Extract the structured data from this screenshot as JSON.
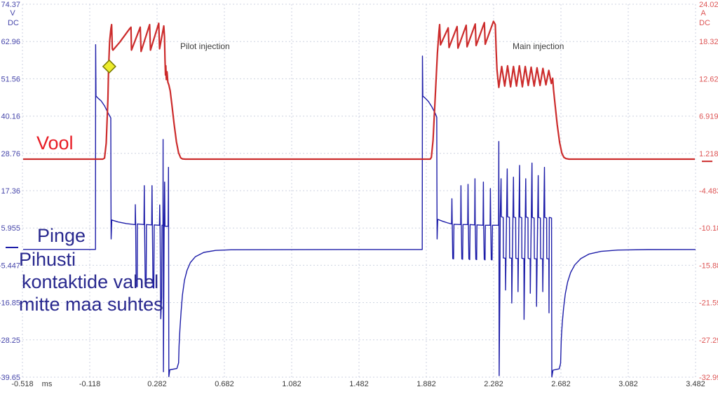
{
  "annotations": {
    "current_label": "Vool",
    "voltage_label": "Pinge",
    "voltage_note_line1": "Pihusti",
    "voltage_note_line2": "kontaktide vahel",
    "voltage_note_line3": "mitte maa suhtes",
    "pilot_injection": "Pilot injection",
    "main_injection": "Main injection"
  },
  "colors": {
    "background": "#ffffff",
    "grid": "#cdd2e0",
    "voltage_trace": "#1c1ca8",
    "current_trace": "#cc2b2b",
    "left_axis_text": "#4646aa",
    "right_axis_text": "#dd5555",
    "x_axis_text": "#3a3a3a",
    "annotation_red": "#e81c24",
    "annotation_blue": "#28288e",
    "injection_text": "#3c3c3c",
    "marker_fill": "#ecec2c",
    "marker_stroke": "#7a7a00"
  },
  "chart_data": {
    "type": "line",
    "title": "",
    "grid": true,
    "legend": "none",
    "x_axis": {
      "label": "ms",
      "range": [
        -0.518,
        3.482
      ],
      "ticks": [
        "-0.518",
        "-0.118",
        "0.282",
        "0.682",
        "1.082",
        "1.482",
        "1.882",
        "2.282",
        "2.682",
        "3.082",
        "3.482"
      ]
    },
    "left_axis": {
      "unit_line1": "V",
      "unit_line2": "DC",
      "range": [
        74.37,
        -39.65
      ],
      "ticks": [
        "74.37",
        "62.96",
        "51.56",
        "40.16",
        "28.76",
        "17.36",
        "5.955",
        "-5.447",
        "-16.85",
        "-28.25",
        "-39.65"
      ]
    },
    "right_axis": {
      "unit_line1": "A",
      "unit_line2": "DC",
      "range": [
        24.02,
        -32.99
      ],
      "ticks": [
        "24.02",
        "18.32",
        "12.62",
        "6.919",
        "1.218",
        "-4.483",
        "-10.18",
        "-15.88",
        "-21.59",
        "-27.29",
        "-32.99"
      ]
    },
    "zero_markers": {
      "voltage_v": 0,
      "current_a": 0
    },
    "trigger_marker": {
      "x_ms": -0.002,
      "value": 14.5,
      "axis": "right",
      "shape": "diamond"
    },
    "series": [
      {
        "name": "voltage",
        "label": "Pinge",
        "axis": "left",
        "color": "#1c1ca8",
        "stroke_width": 1.4,
        "points": [
          [
            -0.514,
            -0.6
          ],
          [
            -0.084,
            -0.6
          ],
          [
            -0.083,
            62.0
          ],
          [
            -0.081,
            46.3
          ],
          [
            -0.068,
            45.6
          ],
          [
            -0.05,
            44.8
          ],
          [
            -0.03,
            43.3
          ],
          [
            -0.01,
            41.2
          ],
          [
            0.007,
            39.6
          ],
          [
            0.008,
            20.0
          ],
          [
            0.009,
            2.6
          ],
          [
            0.011,
            5.5
          ],
          [
            0.013,
            8.4
          ],
          [
            0.05,
            7.8
          ],
          [
            0.1,
            7.3
          ],
          [
            0.148,
            7.0
          ],
          [
            0.152,
            7.0
          ],
          [
            0.153,
            13.1
          ],
          [
            0.155,
            7.0
          ],
          [
            0.158,
            -11.8
          ],
          [
            0.164,
            -12.0
          ],
          [
            0.165,
            7.2
          ],
          [
            0.204,
            7.0
          ],
          [
            0.206,
            18.9
          ],
          [
            0.208,
            7.0
          ],
          [
            0.212,
            -11.9
          ],
          [
            0.217,
            -12.1
          ],
          [
            0.219,
            7.0
          ],
          [
            0.25,
            6.9
          ],
          [
            0.252,
            18.9
          ],
          [
            0.254,
            6.9
          ],
          [
            0.258,
            -12.2
          ],
          [
            0.263,
            -12.4
          ],
          [
            0.265,
            6.9
          ],
          [
            0.296,
            6.8
          ],
          [
            0.298,
            13.0
          ],
          [
            0.3,
            6.8
          ],
          [
            0.304,
            -21.8
          ],
          [
            0.309,
            -15.2
          ],
          [
            0.311,
            6.8
          ],
          [
            0.317,
            6.8
          ],
          [
            0.318,
            33.0
          ],
          [
            0.32,
            -38.0
          ],
          [
            0.324,
            6.0
          ],
          [
            0.327,
            20.0
          ],
          [
            0.329,
            6.5
          ],
          [
            0.348,
            6.5
          ],
          [
            0.35,
            24.5
          ],
          [
            0.352,
            -39.5
          ],
          [
            0.358,
            -37.4
          ],
          [
            0.4,
            -37.0
          ],
          [
            0.41,
            -35.3
          ],
          [
            0.413,
            -30.0
          ],
          [
            0.418,
            -25.0
          ],
          [
            0.425,
            -19.5
          ],
          [
            0.433,
            -14.5
          ],
          [
            0.445,
            -10.0
          ],
          [
            0.46,
            -7.0
          ],
          [
            0.48,
            -4.6
          ],
          [
            0.51,
            -2.8
          ],
          [
            0.56,
            -1.5
          ],
          [
            0.63,
            -0.9
          ],
          [
            0.72,
            -0.7
          ],
          [
            1.4,
            -0.62
          ],
          [
            1.858,
            -0.62
          ],
          [
            1.859,
            58.5
          ],
          [
            1.861,
            46.3
          ],
          [
            1.875,
            45.7
          ],
          [
            1.895,
            44.6
          ],
          [
            1.915,
            43.0
          ],
          [
            1.935,
            41.0
          ],
          [
            1.944,
            39.8
          ],
          [
            1.945,
            20.0
          ],
          [
            1.946,
            2.6
          ],
          [
            1.948,
            5.5
          ],
          [
            1.95,
            8.6
          ],
          [
            1.98,
            8.0
          ],
          [
            2.01,
            7.5
          ],
          [
            2.032,
            7.2
          ],
          [
            2.034,
            14.9
          ],
          [
            2.036,
            7.1
          ],
          [
            2.039,
            -3.4
          ],
          [
            2.044,
            -3.5
          ],
          [
            2.046,
            7.1
          ],
          [
            2.086,
            7.0
          ],
          [
            2.088,
            18.9
          ],
          [
            2.09,
            7.0
          ],
          [
            2.093,
            -3.5
          ],
          [
            2.098,
            -3.6
          ],
          [
            2.1,
            7.0
          ],
          [
            2.128,
            7.0
          ],
          [
            2.13,
            19.3
          ],
          [
            2.132,
            7.0
          ],
          [
            2.135,
            -3.5
          ],
          [
            2.14,
            -3.7
          ],
          [
            2.142,
            7.0
          ],
          [
            2.169,
            6.9
          ],
          [
            2.171,
            21.0
          ],
          [
            2.173,
            6.9
          ],
          [
            2.176,
            -3.6
          ],
          [
            2.181,
            -3.7
          ],
          [
            2.183,
            6.9
          ],
          [
            2.219,
            6.8
          ],
          [
            2.221,
            20.0
          ],
          [
            2.223,
            6.8
          ],
          [
            2.226,
            -3.6
          ],
          [
            2.231,
            -3.8
          ],
          [
            2.233,
            6.8
          ],
          [
            2.261,
            6.8
          ],
          [
            2.263,
            18.0
          ],
          [
            2.265,
            6.8
          ],
          [
            2.268,
            -3.7
          ],
          [
            2.273,
            -3.8
          ],
          [
            2.275,
            6.8
          ],
          [
            2.311,
            6.8
          ],
          [
            2.313,
            32.4
          ],
          [
            2.315,
            -39.2
          ],
          [
            2.319,
            -12.0
          ],
          [
            2.321,
            9.4
          ],
          [
            2.326,
            21.0
          ],
          [
            2.328,
            9.4
          ],
          [
            2.339,
            9.2
          ],
          [
            2.34,
            -3.2
          ],
          [
            2.352,
            -3.3
          ],
          [
            2.353,
            -13.0
          ],
          [
            2.363,
            24.0
          ],
          [
            2.365,
            9.4
          ],
          [
            2.376,
            9.2
          ],
          [
            2.377,
            -3.2
          ],
          [
            2.389,
            -3.3
          ],
          [
            2.39,
            -17.0
          ],
          [
            2.4,
            21.5
          ],
          [
            2.402,
            9.3
          ],
          [
            2.413,
            9.1
          ],
          [
            2.414,
            -3.3
          ],
          [
            2.426,
            -3.4
          ],
          [
            2.427,
            -13.5
          ],
          [
            2.436,
            25.1
          ],
          [
            2.438,
            9.3
          ],
          [
            2.449,
            9.1
          ],
          [
            2.45,
            -3.3
          ],
          [
            2.462,
            -3.4
          ],
          [
            2.463,
            -22.0
          ],
          [
            2.473,
            21.0
          ],
          [
            2.475,
            9.3
          ],
          [
            2.486,
            9.1
          ],
          [
            2.487,
            -3.3
          ],
          [
            2.499,
            -3.5
          ],
          [
            2.5,
            -14.0
          ],
          [
            2.51,
            25.8
          ],
          [
            2.512,
            9.2
          ],
          [
            2.523,
            9.0
          ],
          [
            2.524,
            -3.4
          ],
          [
            2.536,
            -3.5
          ],
          [
            2.537,
            -18.0
          ],
          [
            2.547,
            22.0
          ],
          [
            2.549,
            9.2
          ],
          [
            2.56,
            9.0
          ],
          [
            2.561,
            -3.4
          ],
          [
            2.573,
            -3.5
          ],
          [
            2.574,
            -13.5
          ],
          [
            2.584,
            24.5
          ],
          [
            2.586,
            9.2
          ],
          [
            2.597,
            9.0
          ],
          [
            2.598,
            -3.4
          ],
          [
            2.61,
            -3.5
          ],
          [
            2.611,
            -20.0
          ],
          [
            2.613,
            9.2
          ],
          [
            2.626,
            9.0
          ],
          [
            2.628,
            -39.6
          ],
          [
            2.635,
            -37.5
          ],
          [
            2.672,
            -37.1
          ],
          [
            2.68,
            -35.4
          ],
          [
            2.684,
            -28.0
          ],
          [
            2.69,
            -23.0
          ],
          [
            2.698,
            -18.5
          ],
          [
            2.708,
            -14.2
          ],
          [
            2.722,
            -10.5
          ],
          [
            2.74,
            -7.6
          ],
          [
            2.765,
            -5.3
          ],
          [
            2.8,
            -3.4
          ],
          [
            2.85,
            -2.0
          ],
          [
            2.92,
            -1.2
          ],
          [
            3.02,
            -0.8
          ],
          [
            3.2,
            -0.65
          ],
          [
            3.482,
            -0.62
          ]
        ]
      },
      {
        "name": "current",
        "label": "Vool",
        "axis": "right",
        "color": "#cc2b2b",
        "stroke_width": 2.2,
        "points": [
          [
            -0.514,
            0.34
          ],
          [
            -0.04,
            0.34
          ],
          [
            -0.03,
            0.5
          ],
          [
            -0.02,
            2.8
          ],
          [
            -0.01,
            9.5
          ],
          [
            -0.006,
            14.3
          ],
          [
            0.0,
            18.3
          ],
          [
            0.008,
            20.3
          ],
          [
            0.012,
            20.9
          ],
          [
            0.016,
            17.2
          ],
          [
            0.02,
            17.0
          ],
          [
            0.06,
            18.2
          ],
          [
            0.12,
            20.3
          ],
          [
            0.127,
            20.5
          ],
          [
            0.13,
            17.0
          ],
          [
            0.182,
            20.5
          ],
          [
            0.187,
            16.8
          ],
          [
            0.238,
            20.9
          ],
          [
            0.243,
            17.0
          ],
          [
            0.292,
            21.1
          ],
          [
            0.297,
            17.2
          ],
          [
            0.322,
            20.7
          ],
          [
            0.326,
            19.0
          ],
          [
            0.329,
            15.6
          ],
          [
            0.332,
            13.2
          ],
          [
            0.334,
            14.6
          ],
          [
            0.337,
            12.5
          ],
          [
            0.341,
            13.7
          ],
          [
            0.346,
            12.1
          ],
          [
            0.352,
            11.7
          ],
          [
            0.36,
            10.8
          ],
          [
            0.37,
            8.7
          ],
          [
            0.383,
            5.8
          ],
          [
            0.397,
            3.0
          ],
          [
            0.41,
            1.3
          ],
          [
            0.422,
            0.55
          ],
          [
            0.432,
            0.38
          ],
          [
            0.45,
            0.34
          ],
          [
            1.905,
            0.34
          ],
          [
            1.912,
            0.6
          ],
          [
            1.922,
            3.2
          ],
          [
            1.935,
            9.8
          ],
          [
            1.948,
            16.5
          ],
          [
            1.957,
            19.8
          ],
          [
            1.961,
            20.9
          ],
          [
            1.966,
            17.8
          ],
          [
            2.012,
            20.4
          ],
          [
            2.017,
            17.4
          ],
          [
            2.065,
            20.6
          ],
          [
            2.07,
            17.3
          ],
          [
            2.119,
            20.8
          ],
          [
            2.124,
            17.5
          ],
          [
            2.173,
            21.0
          ],
          [
            2.178,
            17.7
          ],
          [
            2.227,
            21.2
          ],
          [
            2.232,
            17.9
          ],
          [
            2.281,
            21.4
          ],
          [
            2.292,
            20.9
          ],
          [
            2.297,
            17.0
          ],
          [
            2.302,
            14.0
          ],
          [
            2.307,
            12.7
          ],
          [
            2.313,
            11.3
          ],
          [
            2.33,
            14.5
          ],
          [
            2.348,
            11.5
          ],
          [
            2.365,
            14.6
          ],
          [
            2.383,
            11.4
          ],
          [
            2.4,
            14.5
          ],
          [
            2.418,
            11.5
          ],
          [
            2.435,
            14.6
          ],
          [
            2.453,
            11.4
          ],
          [
            2.47,
            14.5
          ],
          [
            2.488,
            11.6
          ],
          [
            2.505,
            14.4
          ],
          [
            2.523,
            11.5
          ],
          [
            2.54,
            14.3
          ],
          [
            2.558,
            11.6
          ],
          [
            2.575,
            14.2
          ],
          [
            2.593,
            11.7
          ],
          [
            2.61,
            13.9
          ],
          [
            2.625,
            11.9
          ],
          [
            2.633,
            12.7
          ],
          [
            2.638,
            11.0
          ],
          [
            2.648,
            8.5
          ],
          [
            2.66,
            5.6
          ],
          [
            2.674,
            2.9
          ],
          [
            2.688,
            1.2
          ],
          [
            2.7,
            0.6
          ],
          [
            2.712,
            0.42
          ],
          [
            2.73,
            0.34
          ],
          [
            3.478,
            0.34
          ]
        ]
      }
    ]
  }
}
